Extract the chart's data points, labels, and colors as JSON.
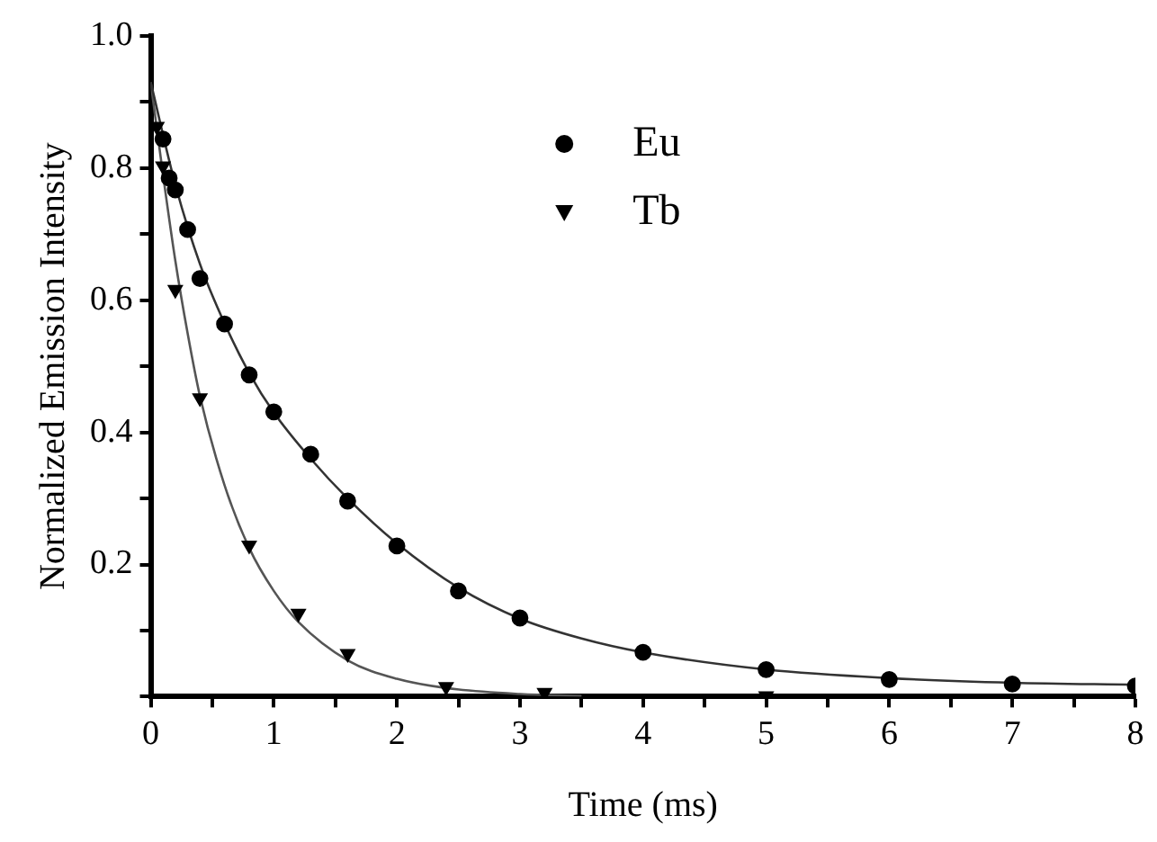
{
  "chart_data": {
    "type": "scatter",
    "xlabel": "Time (ms)",
    "ylabel": "Normalized Emission Intensity",
    "xlim": [
      0,
      8
    ],
    "ylim": [
      0,
      1
    ],
    "xticks": [
      0,
      {
        "value": 0.5,
        "label": null
      },
      1,
      {
        "value": 1.5,
        "label": null
      },
      2,
      {
        "value": 2.5,
        "label": null
      },
      3,
      {
        "value": 3.5,
        "label": null
      },
      4,
      {
        "value": 4.5,
        "label": null
      },
      5,
      {
        "value": 5.5,
        "label": null
      },
      6,
      {
        "value": 6.5,
        "label": null
      },
      7,
      {
        "value": 7.5,
        "label": null
      },
      8
    ],
    "yticks": [
      {
        "value": 0,
        "label": null
      },
      {
        "value": 0.1,
        "label": null
      },
      0.2,
      {
        "value": 0.3,
        "label": null
      },
      0.4,
      {
        "value": 0.5,
        "label": null
      },
      0.6,
      {
        "value": 0.7,
        "label": null
      },
      0.8,
      {
        "value": 0.9,
        "label": null
      },
      {
        "value": 1,
        "label": "1.0"
      }
    ],
    "grid": false,
    "legend": "top right",
    "series": [
      {
        "name": "Eu",
        "color": "#000000",
        "marker": "circle",
        "x": [
          0.1,
          0.15,
          0.2,
          0.3,
          0.4,
          0.6,
          0.8,
          1.0,
          1.3,
          1.6,
          2.0,
          2.5,
          3.0,
          4.0,
          5.0,
          6.0,
          7.0,
          8.0
        ],
        "values": [
          0.844,
          0.785,
          0.767,
          0.707,
          0.633,
          0.564,
          0.487,
          0.431,
          0.367,
          0.296,
          0.228,
          0.16,
          0.119,
          0.067,
          0.041,
          0.026,
          0.019,
          0.016
        ]
      },
      {
        "name": "Tb",
        "color": "#000000",
        "marker": "triangle",
        "x": [
          0.05,
          0.1,
          0.2,
          0.4,
          0.8,
          1.2,
          1.6,
          2.4,
          3.2,
          5.0
        ],
        "values": [
          0.863,
          0.803,
          0.616,
          0.452,
          0.229,
          0.126,
          0.065,
          0.015,
          0.006,
          0.001
        ]
      },
      {
        "type": "line",
        "color": "#333333",
        "marker": "none",
        "x": [
          0,
          0.2,
          0.4,
          0.6,
          0.8,
          1.0,
          1.3,
          1.6,
          2.0,
          2.5,
          3.0,
          3.5,
          4.0,
          5.0,
          6.0,
          7.0,
          8.0
        ],
        "values": [
          0.93,
          0.775,
          0.655,
          0.565,
          0.49,
          0.43,
          0.36,
          0.3,
          0.232,
          0.165,
          0.118,
          0.088,
          0.067,
          0.041,
          0.028,
          0.021,
          0.018
        ]
      },
      {
        "type": "line",
        "color": "#555555",
        "marker": "none",
        "x": [
          0,
          0.1,
          0.2,
          0.3,
          0.4,
          0.6,
          0.8,
          1.0,
          1.2,
          1.6,
          2.0,
          2.4,
          3.0,
          3.5
        ],
        "values": [
          0.93,
          0.79,
          0.66,
          0.55,
          0.455,
          0.32,
          0.225,
          0.16,
          0.113,
          0.055,
          0.027,
          0.013,
          0.004,
          0.001
        ]
      }
    ]
  }
}
